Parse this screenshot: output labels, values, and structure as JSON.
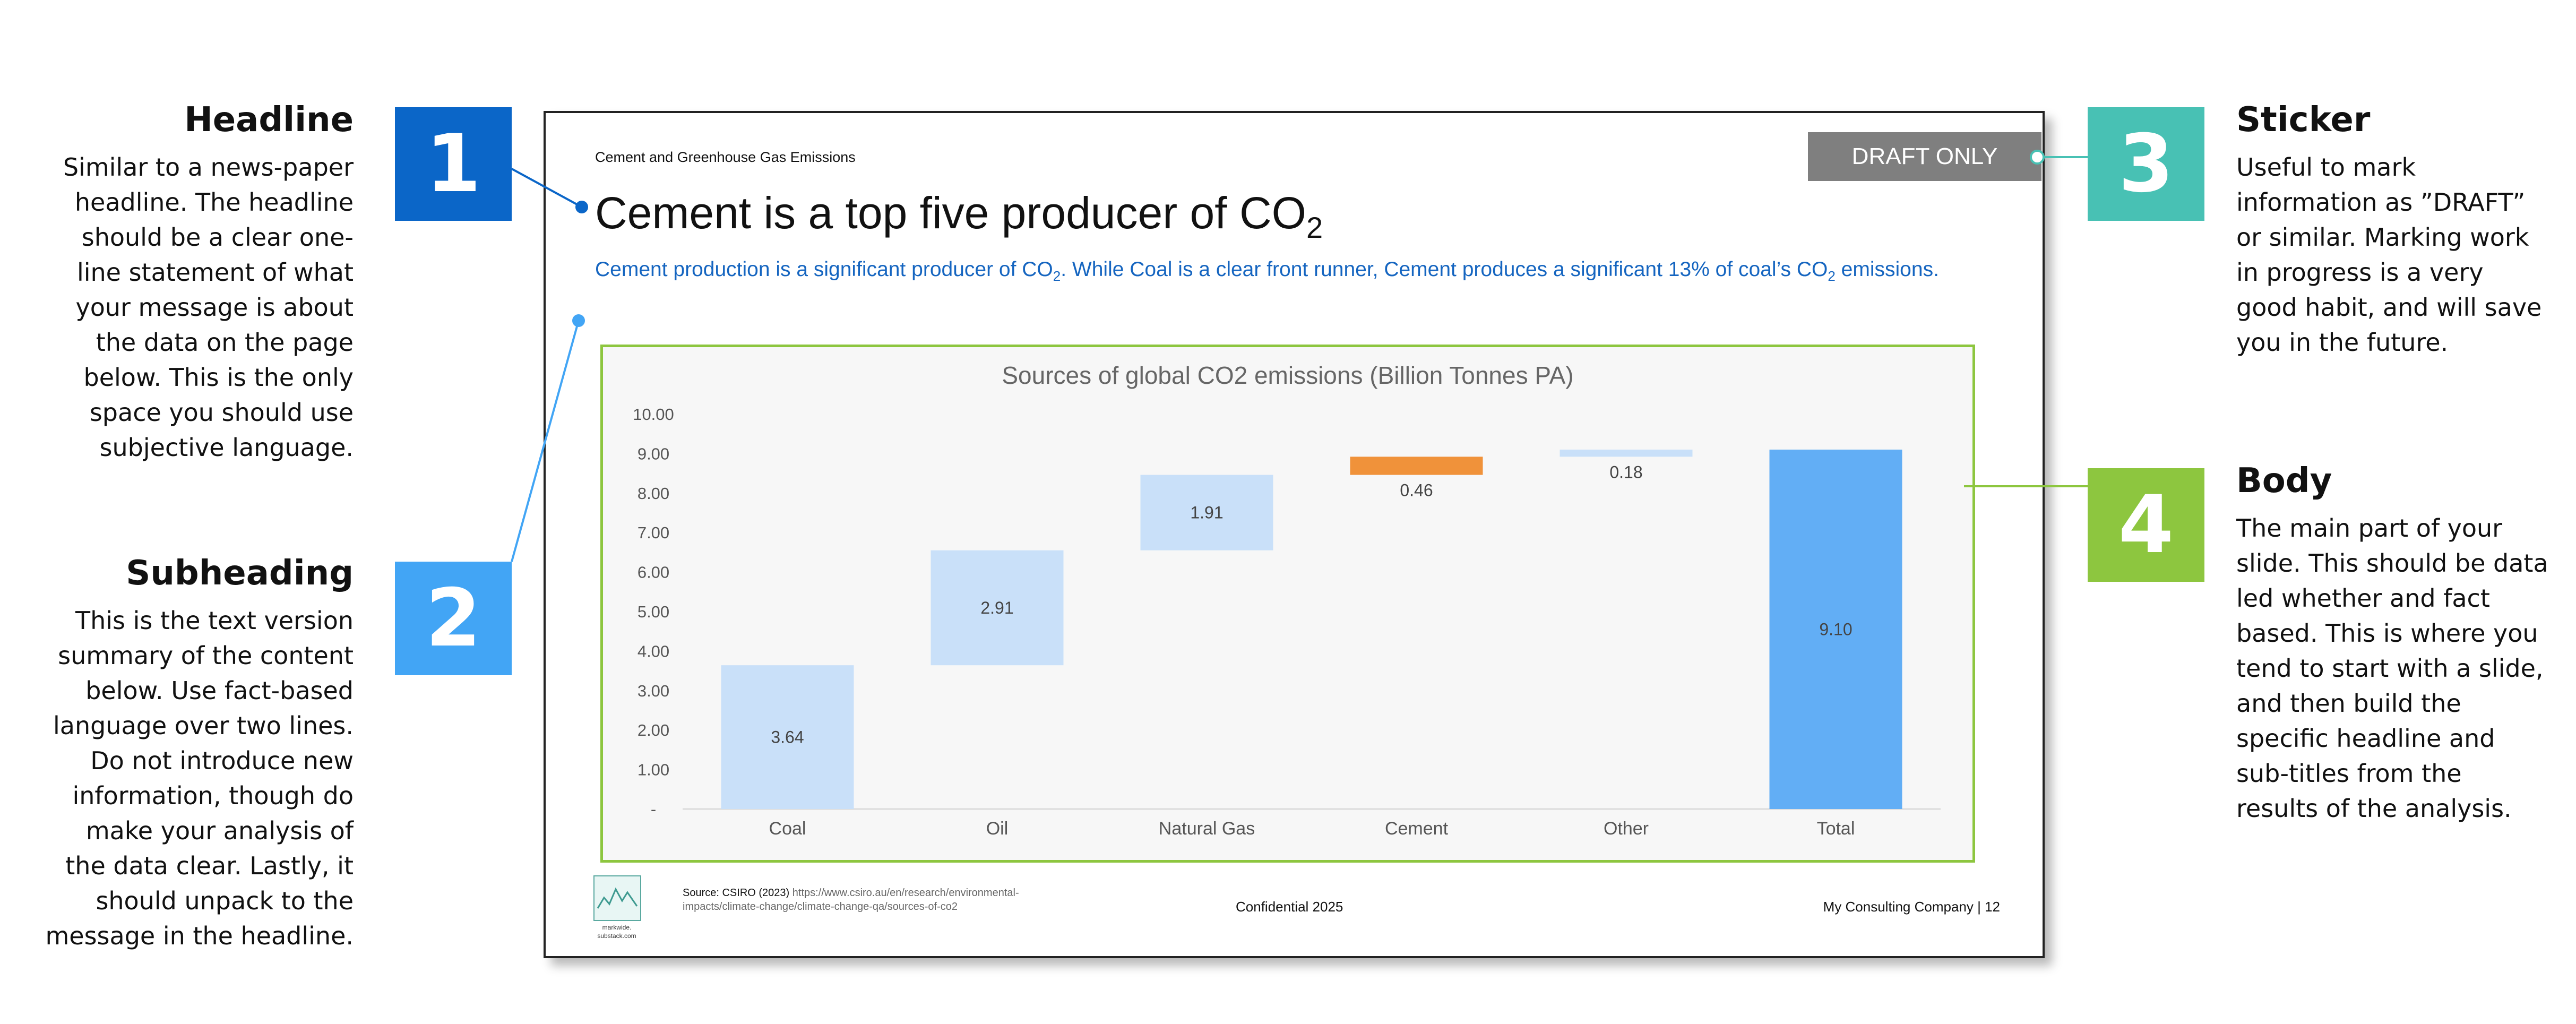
{
  "annotations": {
    "headline": {
      "number": "1",
      "title": "Headline",
      "lines": [
        "Similar to a news-paper",
        "headline. The headline",
        "should be a clear one-",
        "line statement of what",
        "your message is about",
        "the data on the page",
        "below. This is the only",
        "space you should use",
        "subjective language."
      ]
    },
    "subheading": {
      "number": "2",
      "title": "Subheading",
      "lines": [
        "This is the text version",
        "summary of the content",
        "below. Use fact-based",
        "language over two lines.",
        "Do not introduce new",
        "information, though do",
        "make your analysis of",
        "the data clear. Lastly, it",
        "should unpack to the",
        "message in the headline."
      ]
    },
    "sticker": {
      "number": "3",
      "title": "Sticker",
      "lines": [
        "Useful to mark",
        "information as ”DRAFT”",
        "or similar. Marking work",
        "in progress is a very",
        "good habit, and will save",
        "you in the future."
      ]
    },
    "body": {
      "number": "4",
      "title": "Body",
      "lines": [
        "The main part of your",
        "slide. This should be data",
        "led whether and fact",
        "based. This is where you",
        "tend to start with a slide,",
        "and then build the",
        "specific headline and",
        "sub-titles from the",
        "results of the analysis."
      ]
    }
  },
  "colors": {
    "badge1": "#0b66c8",
    "badge2": "#42a5f5",
    "badge3": "#48c1b4",
    "badge4": "#8dc63f",
    "bar_light": "#c9e0f9",
    "bar_cement": "#f0923a",
    "bar_total": "#62aef5"
  },
  "slide": {
    "top_label": "Cement and Greenhouse Gas Emissions",
    "sticker": "DRAFT ONLY",
    "headline_main": "Cement is a top five producer of CO",
    "headline_sub": "2",
    "subheading_a": "Cement production is a significant producer of CO",
    "subheading_b": ". While Coal is a clear front runner, Cement produces a significant 13% of coal’s CO",
    "subheading_c": " emissions.",
    "subheading_subscript": "2",
    "footer": {
      "source_label": "Source: CSIRO (2023)",
      "source_url": "https://www.csiro.au/en/research/environmental-impacts/climate-change/climate-change-qa/sources-of-co2",
      "confidential": "Confidential 2025",
      "company": "My Consulting Company  | 12",
      "logo_text_1": "markwide.",
      "logo_text_2": "substack.com"
    }
  },
  "chart_data": {
    "type": "bar",
    "subtype": "waterfall",
    "title": "Sources of global CO2 emissions (Billion Tonnes PA)",
    "categories": [
      "Coal",
      "Oil",
      "Natural Gas",
      "Cement",
      "Other",
      "Total"
    ],
    "values": [
      3.64,
      2.91,
      1.91,
      0.46,
      0.18,
      9.1
    ],
    "labels": [
      "3.64",
      "2.91",
      "1.91",
      "0.46",
      "0.18",
      "9.10"
    ],
    "ylim": [
      0,
      10
    ],
    "yticks": [
      "-",
      "1.00",
      "2.00",
      "3.00",
      "4.00",
      "5.00",
      "6.00",
      "7.00",
      "8.00",
      "9.00",
      "10.00"
    ],
    "grid": false,
    "xlabel": "",
    "ylabel": ""
  }
}
